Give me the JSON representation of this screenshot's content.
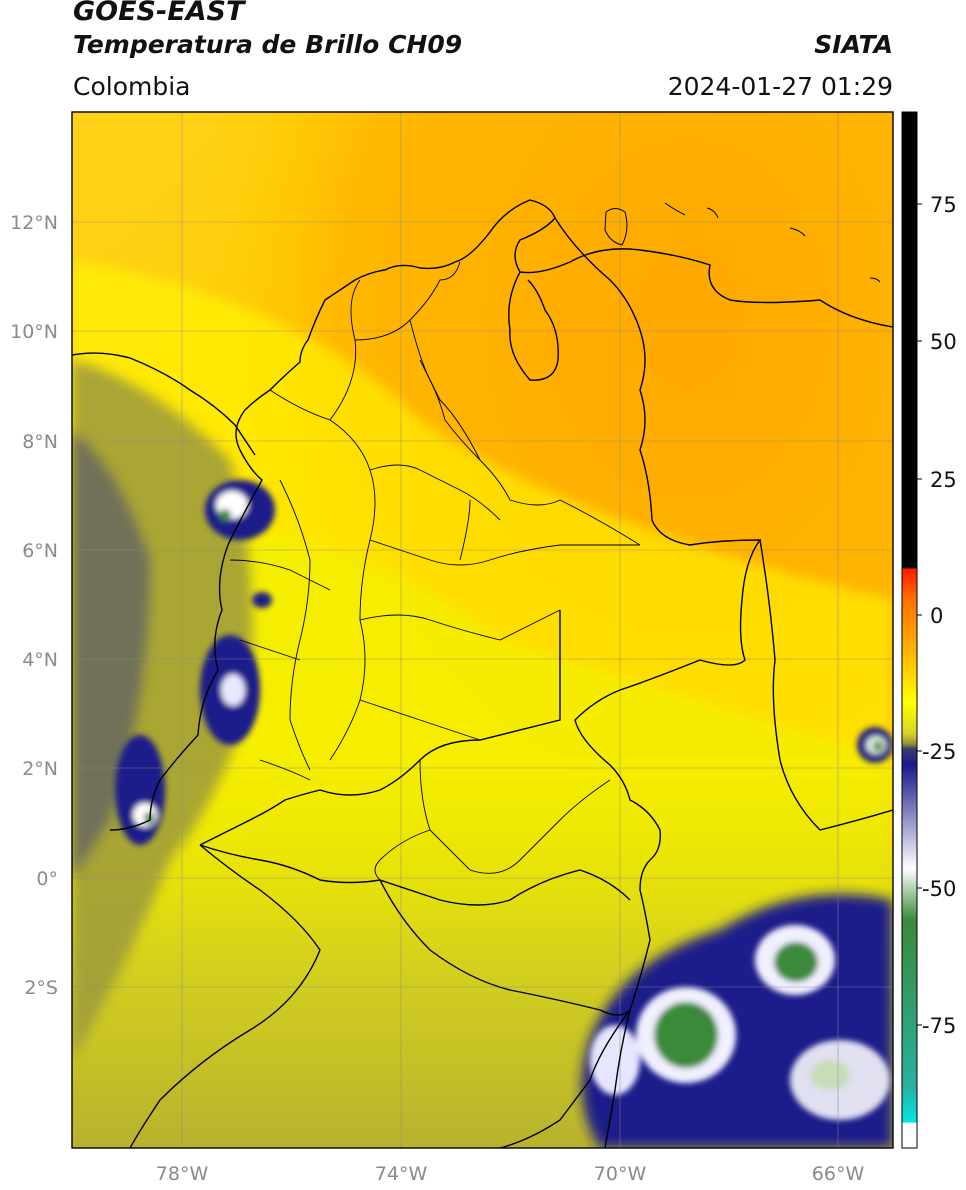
{
  "header": {
    "satellite": "GOES-EAST",
    "product": "Temperatura de Brillo CH09",
    "region": "Colombia",
    "organization": "SIATA",
    "datetime": "2024-01-27 01:29"
  },
  "map": {
    "lat_ticks": [
      "12°N",
      "10°N",
      "8°N",
      "6°N",
      "4°N",
      "2°N",
      "0°",
      "2°S"
    ],
    "lon_ticks": [
      "78°W",
      "74°W",
      "70°W",
      "66°W"
    ],
    "extent": {
      "lon_min": -80,
      "lon_max": -65,
      "lat_min": -5,
      "lat_max": 14
    },
    "gridlines": true
  },
  "colorbar": {
    "ticks": [
      "75",
      "50",
      "25",
      "0",
      "-25",
      "-50",
      "-75"
    ],
    "colors": {
      "black": "#000000",
      "red": "#ff2000",
      "orange": "#ffa500",
      "yellow": "#ffff00",
      "olive": "#8f8f3a",
      "navy": "#1a1a8a",
      "white": "#ffffff",
      "green": "#3a8a3a",
      "cyan": "#00e5e5"
    }
  }
}
